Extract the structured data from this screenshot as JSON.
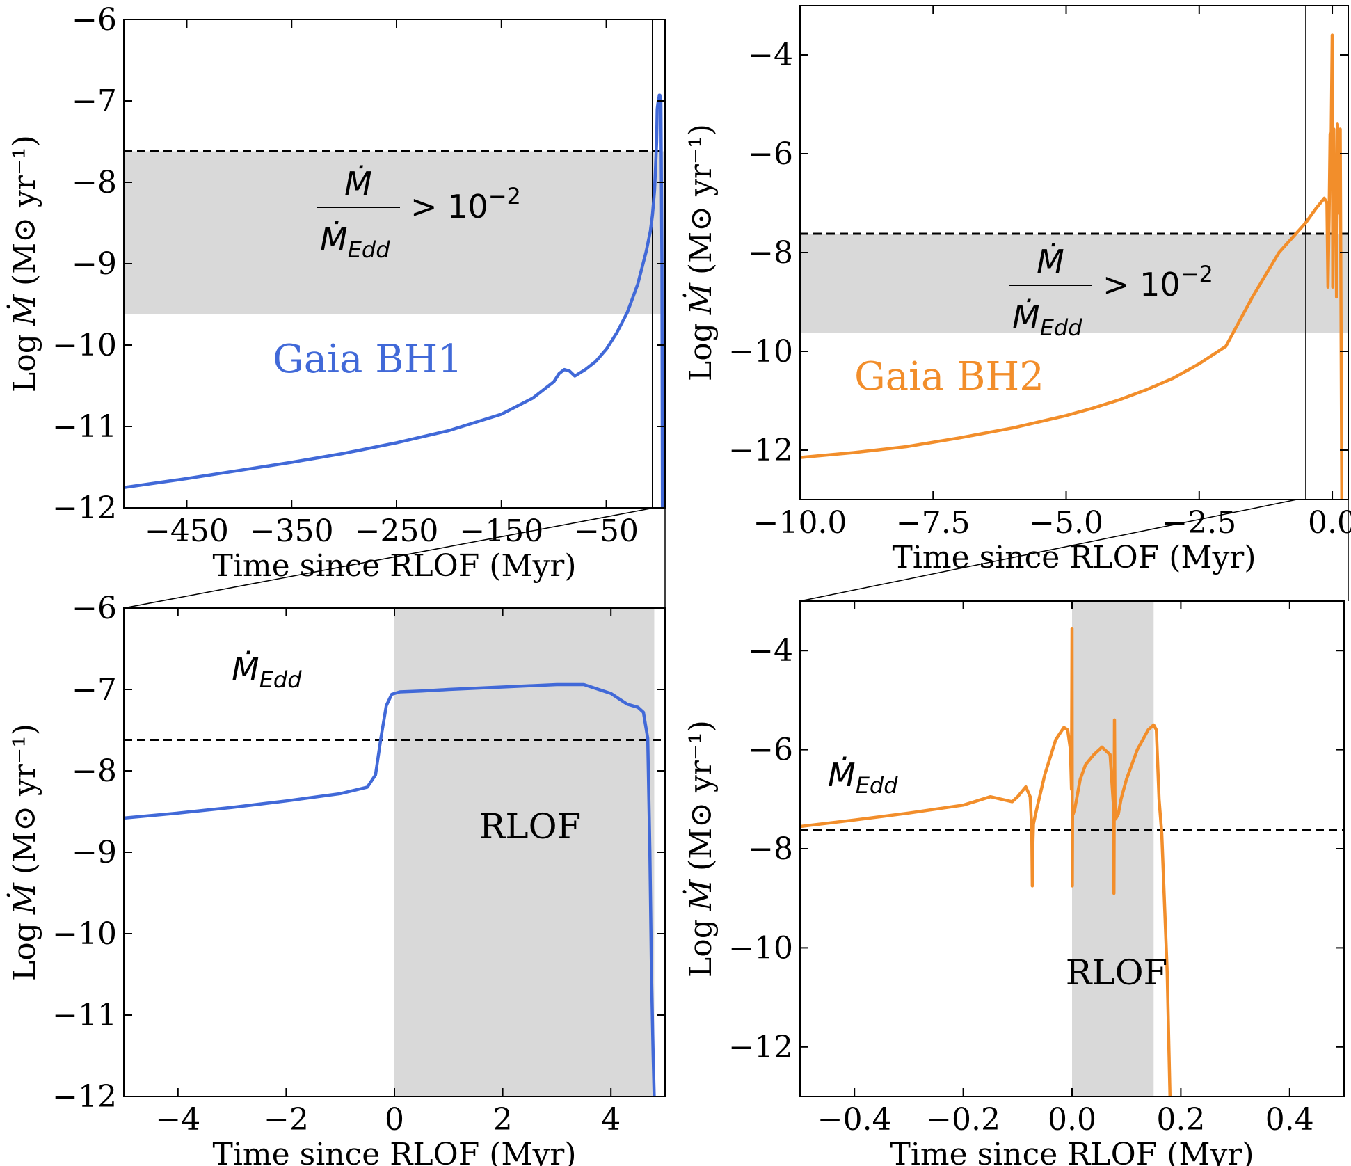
{
  "chart_data": [
    {
      "id": "bh1_top",
      "type": "line",
      "title": "",
      "xlabel": "Time since RLOF (Myr)",
      "ylabel_parts": {
        "log": "Log",
        "mdot": "Ṁ",
        "units": "(M⊙ yr⁻¹)"
      },
      "xlim": [
        -510,
        6
      ],
      "ylim": [
        -12,
        -6
      ],
      "xticks": [
        -450,
        -350,
        -250,
        -150,
        -50
      ],
      "xtick_labels": [
        "−450",
        "−350",
        "−250",
        "−150",
        "−50"
      ],
      "yticks": [
        -12,
        -11,
        -10,
        -9,
        -8,
        -7,
        -6
      ],
      "ytick_labels": [
        "−12",
        "−11",
        "−10",
        "−9",
        "−8",
        "−7",
        "−6"
      ],
      "edd_line": -7.62,
      "band": [
        -9.62,
        -7.62
      ],
      "vline_x": -6.2,
      "label": "Gaia BH1",
      "ratio_label": {
        "num": "Ṁ",
        "den": "Ṁ",
        "den_sub": "Edd",
        "rhs": "> 10",
        "exp": "−2"
      },
      "color": "#4169d8",
      "series": [
        {
          "name": "Gaia BH1",
          "x": [
            -510,
            -450,
            -400,
            -350,
            -300,
            -250,
            -200,
            -150,
            -120,
            -100,
            -95,
            -90,
            -85,
            -80,
            -70,
            -60,
            -50,
            -40,
            -30,
            -20,
            -12,
            -8,
            -6,
            -4,
            -2,
            -1.5,
            -0.5,
            0,
            0.5,
            1,
            2,
            3,
            3.5
          ],
          "y": [
            -11.75,
            -11.64,
            -11.54,
            -11.44,
            -11.33,
            -11.2,
            -11.05,
            -10.85,
            -10.65,
            -10.45,
            -10.35,
            -10.3,
            -10.32,
            -10.38,
            -10.3,
            -10.2,
            -10.05,
            -9.85,
            -9.6,
            -9.25,
            -8.85,
            -8.6,
            -8.4,
            -8.1,
            -7.5,
            -7.1,
            -7.0,
            -6.98,
            -6.93,
            -6.93,
            -7.0,
            -9,
            -12
          ]
        }
      ]
    },
    {
      "id": "bh1_bottom",
      "type": "line",
      "title": "",
      "xlabel": "Time since RLOF (Myr)",
      "ylabel_parts": {
        "log": "Log",
        "mdot": "Ṁ",
        "units": "(M⊙ yr⁻¹)"
      },
      "xlim": [
        -5,
        5
      ],
      "ylim": [
        -12,
        -6
      ],
      "xticks": [
        -4,
        -2,
        0,
        2,
        4
      ],
      "xtick_labels": [
        "−4",
        "−2",
        "0",
        "2",
        "4"
      ],
      "yticks": [
        -12,
        -11,
        -10,
        -9,
        -8,
        -7,
        -6
      ],
      "ytick_labels": [
        "−12",
        "−11",
        "−10",
        "−9",
        "−8",
        "−7",
        "−6"
      ],
      "edd_line": -7.62,
      "rlof_span": [
        0,
        4.8
      ],
      "edd_label": {
        "base": "Ṁ",
        "sub": "Edd"
      },
      "rlof_label": "RLOF",
      "color": "#4169d8",
      "series": [
        {
          "name": "Gaia BH1",
          "x": [
            -5,
            -4,
            -3,
            -2,
            -1,
            -0.5,
            -0.35,
            -0.25,
            -0.15,
            -0.05,
            0.1,
            0.5,
            1,
            2,
            3,
            3.5,
            4,
            4.3,
            4.5,
            4.6,
            4.68,
            4.72,
            4.75,
            4.78,
            4.8
          ],
          "y": [
            -8.58,
            -8.52,
            -8.45,
            -8.37,
            -8.28,
            -8.2,
            -8.05,
            -7.6,
            -7.2,
            -7.06,
            -7.03,
            -7.02,
            -7.0,
            -6.97,
            -6.94,
            -6.94,
            -7.05,
            -7.18,
            -7.22,
            -7.28,
            -7.6,
            -9.0,
            -10.5,
            -11.5,
            -12
          ]
        }
      ]
    },
    {
      "id": "bh2_top",
      "type": "line",
      "title": "",
      "xlabel": "Time since RLOF (Myr)",
      "ylabel_parts": {
        "log": "Log",
        "mdot": "Ṁ",
        "units": "(M⊙ yr⁻¹)"
      },
      "xlim": [
        -10,
        0.3
      ],
      "ylim": [
        -13,
        -3
      ],
      "xticks": [
        -10,
        -7.5,
        -5,
        -2.5,
        0
      ],
      "xtick_labels": [
        "−10.0",
        "−7.5",
        "−5.0",
        "−2.5",
        "0.0"
      ],
      "yticks": [
        -12,
        -10,
        -8,
        -6,
        -4
      ],
      "ytick_labels": [
        "−12",
        "−10",
        "−8",
        "−6",
        "−4"
      ],
      "edd_line": -7.62,
      "band": [
        -9.62,
        -7.62
      ],
      "vline_x": -0.5,
      "label": "Gaia BH2",
      "ratio_label": {
        "num": "Ṁ",
        "den": "Ṁ",
        "den_sub": "Edd",
        "rhs": "> 10",
        "exp": "−2"
      },
      "color": "#f28e2b",
      "series": [
        {
          "name": "Gaia BH2",
          "x": [
            -10,
            -9,
            -8,
            -7,
            -6,
            -5,
            -4.5,
            -4,
            -3.5,
            -3,
            -2.5,
            -2,
            -1.5,
            -1,
            -0.5,
            -0.3,
            -0.15,
            -0.1,
            -0.08,
            -0.06,
            -0.04,
            -0.02,
            0,
            0.01,
            0.02,
            0.03,
            0.05,
            0.07,
            0.08,
            0.1,
            0.12,
            0.15,
            0.18
          ],
          "y": [
            -12.15,
            -12.05,
            -11.93,
            -11.75,
            -11.55,
            -11.3,
            -11.15,
            -10.98,
            -10.78,
            -10.55,
            -10.25,
            -9.9,
            -8.9,
            -8.0,
            -7.4,
            -7.1,
            -6.9,
            -7.0,
            -8.7,
            -7.3,
            -5.6,
            -5.7,
            -3.6,
            -8.7,
            -7.4,
            -5.5,
            -7.3,
            -6.3,
            -8.9,
            -5.4,
            -7.2,
            -5.5,
            -13
          ]
        }
      ]
    },
    {
      "id": "bh2_bottom",
      "type": "line",
      "title": "",
      "xlabel": "Time since RLOF (Myr)",
      "ylabel_parts": {
        "log": "Log",
        "mdot": "Ṁ",
        "units": "(M⊙ yr⁻¹)"
      },
      "xlim": [
        -0.5,
        0.5
      ],
      "ylim": [
        -13,
        -3
      ],
      "xticks": [
        -0.4,
        -0.2,
        0,
        0.2,
        0.4
      ],
      "xtick_labels": [
        "−0.4",
        "−0.2",
        "0.0",
        "0.2",
        "0.4"
      ],
      "yticks": [
        -12,
        -10,
        -8,
        -6,
        -4
      ],
      "ytick_labels": [
        "−12",
        "−10",
        "−8",
        "−6",
        "−4"
      ],
      "edd_line": -7.62,
      "rlof_span": [
        0,
        0.15
      ],
      "edd_label": {
        "base": "Ṁ",
        "sub": "Edd"
      },
      "rlof_label": "RLOF",
      "color": "#f28e2b",
      "series": [
        {
          "name": "Gaia BH2",
          "x": [
            -0.5,
            -0.4,
            -0.3,
            -0.2,
            -0.15,
            -0.13,
            -0.11,
            -0.1,
            -0.085,
            -0.077,
            -0.074,
            -0.073,
            -0.072,
            -0.071,
            -0.065,
            -0.05,
            -0.03,
            -0.015,
            -0.008,
            -0.003,
            -0.001,
            0,
            0.0005,
            0.001,
            0.002,
            0.005,
            0.01,
            0.015,
            0.025,
            0.04,
            0.055,
            0.07,
            0.076,
            0.077,
            0.078,
            0.079,
            0.08,
            0.085,
            0.09,
            0.1,
            0.12,
            0.14,
            0.15,
            0.155,
            0.16,
            0.165,
            0.175,
            0.18
          ],
          "y": [
            -7.55,
            -7.42,
            -7.28,
            -7.12,
            -6.95,
            -7.0,
            -7.05,
            -6.95,
            -6.75,
            -6.95,
            -7.6,
            -8.75,
            -7.9,
            -7.5,
            -7.2,
            -6.5,
            -5.8,
            -5.55,
            -5.6,
            -6.0,
            -6.8,
            -3.55,
            -8.75,
            -7.2,
            -7.3,
            -7.2,
            -6.9,
            -6.6,
            -6.3,
            -6.1,
            -5.95,
            -6.1,
            -7.1,
            -8.9,
            -5.4,
            -7.3,
            -7.4,
            -7.3,
            -7.0,
            -6.6,
            -6.0,
            -5.6,
            -5.5,
            -5.6,
            -7.0,
            -7.7,
            -10.5,
            -13
          ]
        }
      ]
    }
  ]
}
